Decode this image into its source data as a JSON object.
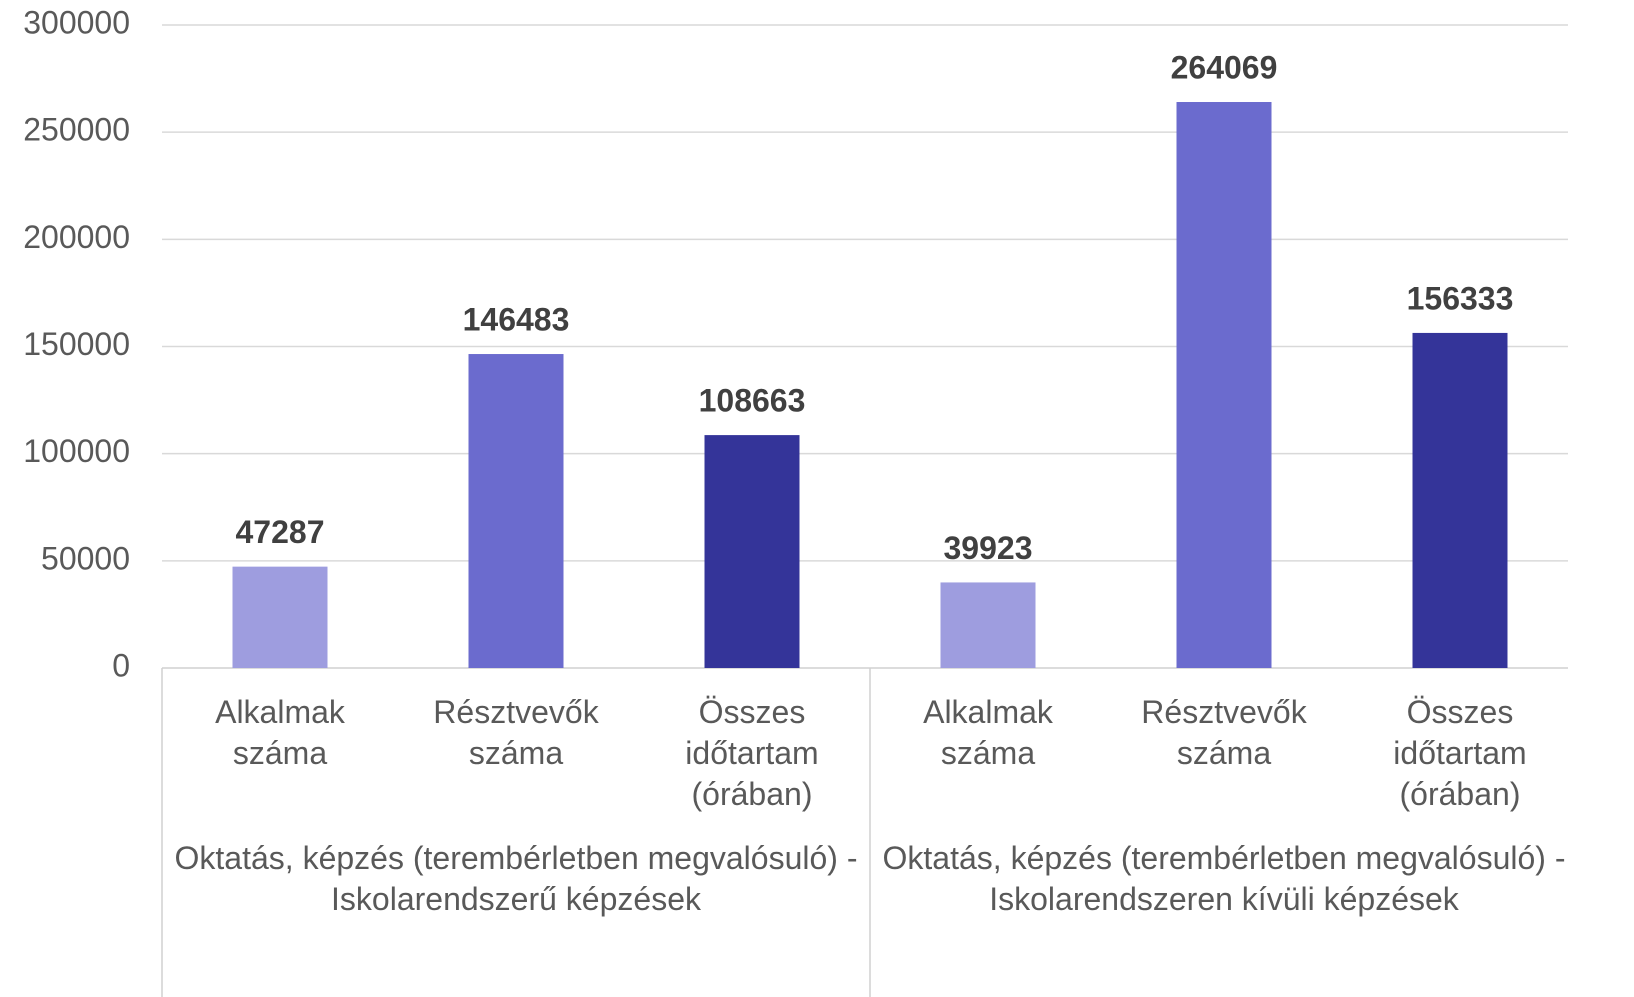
{
  "chart_data": {
    "type": "grouped-bar",
    "groups": [
      {
        "name": "Oktatás, képzés (terembérletben megvalósuló) - Iskolarendszerű képzések",
        "categories": [
          "Alkalmak száma",
          "Résztvevők száma",
          "Összes időtartam (órában)"
        ],
        "values": [
          47287,
          146483,
          108663
        ]
      },
      {
        "name": "Oktatás, képzés (terembérletben megvalósuló) - Iskolarendszeren kívüli képzések",
        "categories": [
          "Alkalmak száma",
          "Résztvevők száma",
          "Összes időtartam (órában)"
        ],
        "values": [
          39923,
          264069,
          156333
        ]
      }
    ],
    "colors": [
      "#9e9ddf",
      "#6b6bce",
      "#343499"
    ],
    "ylim": [
      0,
      300000
    ],
    "yticks": [
      0,
      50000,
      100000,
      150000,
      200000,
      250000,
      300000
    ],
    "grid": true
  }
}
